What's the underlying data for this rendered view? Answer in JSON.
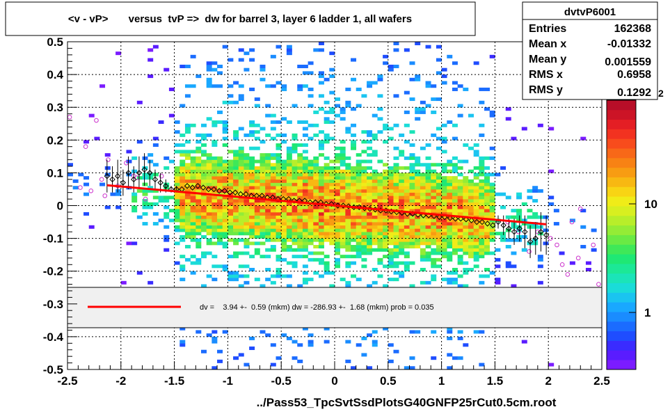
{
  "chart_data": {
    "type": "scatter",
    "title": "<v - vP>       versus  tvP =>  dw for barrel 3, layer 6 ladder 1, all wafers",
    "footer": "../Pass53_TpcSvtSsdPlotsG40GNFP25rCut0.5cm.root",
    "xlim": [
      -2.5,
      2.5
    ],
    "ylim": [
      -0.5,
      0.5
    ],
    "x_ticks": [
      "-2.5",
      "-2",
      "-1.5",
      "-1",
      "-0.5",
      "0",
      "0.5",
      "1",
      "1.5",
      "2",
      "2.5"
    ],
    "y_ticks": [
      "-0.5",
      "-0.4",
      "-0.3",
      "-0.2",
      "-0.1",
      "0",
      "0.1",
      "0.2",
      "0.3",
      "0.4",
      "0.5"
    ],
    "grid": true,
    "stats": {
      "name": "dvtvP6001",
      "rows": [
        {
          "label": "Entries",
          "value": "162368"
        },
        {
          "label": "Mean x",
          "value": "-0.01332"
        },
        {
          "label": "Mean y",
          "value": "0.001559"
        },
        {
          "label": "RMS x",
          "value": "0.6958"
        },
        {
          "label": "RMS y",
          "value": "0.1292"
        }
      ]
    },
    "colorbar": {
      "scale": "log",
      "labels": [
        "1",
        "10"
      ],
      "exponent_label": "2",
      "colors": [
        "#7b1cff",
        "#5a1cff",
        "#3a2cff",
        "#1f4dff",
        "#1b6cff",
        "#1a8cff",
        "#19a8ff",
        "#1ac4f0",
        "#1adcd8",
        "#1be4b8",
        "#1ce896",
        "#1fe874",
        "#3fe858",
        "#6aea44",
        "#94ec36",
        "#b8ee2a",
        "#d8ef20",
        "#f0ec18",
        "#f8d414",
        "#f8b812",
        "#f89c12",
        "#f88214",
        "#f86818",
        "#f84c1c",
        "#f23220",
        "#e41e24",
        "#cc1426",
        "#b80e28"
      ]
    },
    "profile": {
      "name": "profile",
      "x": [
        -2.13,
        -2.08,
        -2.03,
        -1.98,
        -1.93,
        -1.88,
        -1.83,
        -1.78,
        -1.73,
        -1.68,
        -1.63,
        -1.58,
        -1.53,
        -1.48,
        -1.43,
        -1.38,
        -1.33,
        -1.28,
        -1.23,
        -1.18,
        -1.13,
        -1.08,
        -1.03,
        -0.98,
        -0.93,
        -0.88,
        -0.83,
        -0.78,
        -0.73,
        -0.68,
        -0.63,
        -0.58,
        -0.53,
        -0.48,
        -0.43,
        -0.38,
        -0.33,
        -0.28,
        -0.23,
        -0.18,
        -0.13,
        -0.08,
        -0.03,
        0.03,
        0.08,
        0.13,
        0.18,
        0.23,
        0.28,
        0.33,
        0.38,
        0.43,
        0.48,
        0.53,
        0.58,
        0.63,
        0.68,
        0.73,
        0.78,
        0.83,
        0.88,
        0.93,
        0.98,
        1.03,
        1.08,
        1.13,
        1.18,
        1.23,
        1.28,
        1.33,
        1.38,
        1.43,
        1.48,
        1.53,
        1.58,
        1.63,
        1.68,
        1.73,
        1.78,
        1.83,
        1.88,
        1.93,
        1.98
      ],
      "y": [
        0.09,
        0.08,
        0.09,
        0.07,
        0.1,
        0.08,
        0.1,
        0.11,
        0.1,
        0.08,
        0.07,
        0.06,
        0.05,
        0.05,
        0.05,
        0.06,
        0.055,
        0.06,
        0.055,
        0.05,
        0.05,
        0.045,
        0.045,
        0.04,
        0.04,
        0.035,
        0.035,
        0.03,
        0.03,
        0.03,
        0.025,
        0.025,
        0.02,
        0.02,
        0.02,
        0.015,
        0.015,
        0.015,
        0.01,
        0.01,
        0.01,
        0.005,
        0.005,
        0.0,
        0.0,
        -0.002,
        -0.005,
        -0.005,
        -0.008,
        -0.01,
        -0.012,
        -0.015,
        -0.015,
        -0.018,
        -0.02,
        -0.022,
        -0.025,
        -0.025,
        -0.028,
        -0.03,
        -0.03,
        -0.032,
        -0.035,
        -0.035,
        -0.038,
        -0.04,
        -0.04,
        -0.042,
        -0.045,
        -0.05,
        -0.05,
        -0.055,
        -0.06,
        -0.05,
        -0.06,
        -0.07,
        -0.08,
        -0.07,
        -0.08,
        -0.11,
        -0.1,
        -0.08,
        -0.09
      ],
      "err": [
        0.05,
        0.04,
        0.05,
        0.04,
        0.05,
        0.04,
        0.05,
        0.05,
        0.04,
        0.03,
        0.03,
        0.02,
        0.01,
        0.01,
        0.005,
        0.005,
        0.005,
        0.005,
        0.005,
        0.005,
        0.005,
        0.005,
        0.005,
        0.005,
        0.005,
        0.005,
        0.005,
        0.005,
        0.005,
        0.005,
        0.005,
        0.005,
        0.005,
        0.005,
        0.005,
        0.005,
        0.005,
        0.005,
        0.005,
        0.005,
        0.005,
        0.005,
        0.005,
        0.005,
        0.005,
        0.005,
        0.005,
        0.005,
        0.005,
        0.005,
        0.005,
        0.005,
        0.005,
        0.005,
        0.005,
        0.005,
        0.005,
        0.005,
        0.005,
        0.005,
        0.005,
        0.005,
        0.005,
        0.005,
        0.005,
        0.005,
        0.005,
        0.005,
        0.005,
        0.005,
        0.005,
        0.005,
        0.005,
        0.02,
        0.03,
        0.03,
        0.04,
        0.04,
        0.05,
        0.05,
        0.05,
        0.06,
        0.06
      ]
    },
    "outliers": {
      "name": "outliers",
      "x": [
        -2.48,
        -2.38,
        -2.33,
        -2.28,
        -2.23,
        -2.18,
        -2.15,
        -2.12,
        -2.03,
        -1.95,
        -1.88,
        -1.85,
        -1.77,
        -1.62,
        1.62,
        1.72,
        1.82,
        1.9,
        2.02,
        2.08,
        2.13,
        2.18,
        2.22,
        2.28,
        2.3,
        2.42,
        2.47
      ],
      "y": [
        0.27,
        0.055,
        0.18,
        0.045,
        0.26,
        0.08,
        0.03,
        0.14,
        0.06,
        0.13,
        0.09,
        0.085,
        0.02,
        0.09,
        -0.05,
        -0.08,
        -0.14,
        -0.08,
        -0.1,
        -0.12,
        -0.18,
        -0.21,
        -0.05,
        -0.16,
        -0.01,
        -0.12,
        -0.24
      ]
    },
    "fit": {
      "name": "fit",
      "x": [
        -2.13,
        1.98
      ],
      "y": [
        0.062,
        -0.057
      ],
      "color": "#ff0000"
    },
    "fit_legend": "dv =    3.94 +-  0.59 (mkm) dw = -286.93 +-  1.68 (mkm) prob = 0.035"
  }
}
